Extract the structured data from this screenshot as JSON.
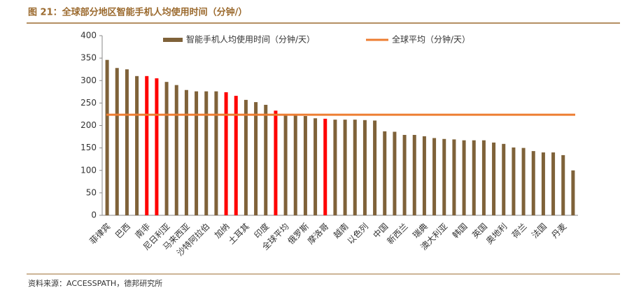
{
  "chart_data": {
    "type": "bar",
    "title": "图 21：全球部分地区智能手机人均使用时间（分钟/）",
    "source": "资料来源：ACCESSPATH，德邦研究所",
    "categories": [
      "菲律宾",
      null,
      "巴西",
      null,
      "南非",
      null,
      "尼日利亚",
      null,
      "马来西亚",
      null,
      "沙特阿拉伯",
      null,
      "加纳",
      null,
      "土耳其",
      null,
      "印度",
      null,
      "全球平均",
      null,
      "俄罗斯",
      null,
      "摩洛哥",
      null,
      "越南",
      null,
      "以色列",
      null,
      "中国",
      null,
      "新西兰",
      null,
      "瑞典",
      null,
      "澳大利亚",
      null,
      "韩国",
      null,
      "英国",
      null,
      "奥地利",
      null,
      "荷兰",
      null,
      "法国",
      null,
      "丹麦",
      null
    ],
    "series": [
      {
        "name": "智能手机人均使用时间（分钟/天）",
        "color": "#7f6239",
        "values": [
          346,
          328,
          325,
          310,
          310,
          305,
          297,
          290,
          279,
          276,
          276,
          276,
          274,
          266,
          257,
          252,
          246,
          233,
          224,
          222,
          221,
          216,
          215,
          213,
          213,
          213,
          212,
          211,
          187,
          186,
          179,
          179,
          176,
          172,
          170,
          169,
          167,
          167,
          167,
          162,
          159,
          151,
          150,
          143,
          140,
          140,
          134,
          100
        ],
        "highlight_color": "#ff0000",
        "highlight": [
          4,
          5,
          12,
          13,
          17,
          22
        ]
      }
    ],
    "average": {
      "name": "全球平均（分钟/天）",
      "color": "#ed7d31",
      "value": 224
    },
    "ylim": [
      0,
      400
    ],
    "yticks": [
      0,
      50,
      100,
      150,
      200,
      250,
      300,
      350,
      400
    ]
  }
}
